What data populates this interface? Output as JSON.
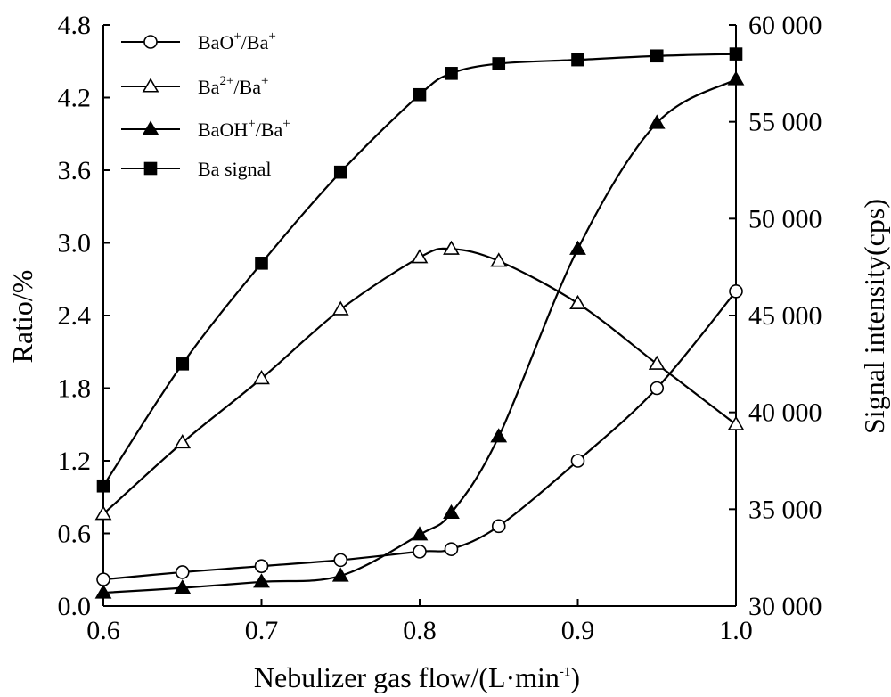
{
  "chart_data": {
    "type": "line",
    "xlabel": "Nebulizer gas flow/(L·min",
    "xlabel_sup": "-1",
    "xlabel_end": ")",
    "ylabel_left": "Ratio/%",
    "ylabel_right": "Signal intensity(cps)",
    "xlim": [
      0.6,
      1.0
    ],
    "ylim_left": [
      0.0,
      4.8
    ],
    "ylim_right": [
      30000,
      60000
    ],
    "x_ticks": [
      "0.6",
      "0.7",
      "0.8",
      "0.9",
      "1.0"
    ],
    "y_left_ticks": [
      "0.0",
      "0.6",
      "1.2",
      "1.8",
      "2.4",
      "3.0",
      "3.6",
      "4.2",
      "4.8"
    ],
    "y_right_ticks": [
      "30 000",
      "35 000",
      "40 000",
      "45 000",
      "50 000",
      "55 000",
      "60 000"
    ],
    "grid": false,
    "legend_position": "top-left",
    "series": [
      {
        "name": "BaO+/Ba+",
        "label_parts": [
          [
            "BaO",
            ""
          ],
          [
            "+",
            "sup"
          ],
          [
            "/Ba",
            ""
          ],
          [
            "+",
            "sup"
          ]
        ],
        "marker": "circle-open",
        "axis": "left",
        "x": [
          0.6,
          0.65,
          0.7,
          0.75,
          0.8,
          0.82,
          0.85,
          0.9,
          0.95,
          1.0
        ],
        "values": [
          0.22,
          0.28,
          0.33,
          0.38,
          0.45,
          0.47,
          0.66,
          1.2,
          1.8,
          2.6
        ]
      },
      {
        "name": "Ba2+/Ba+",
        "label_parts": [
          [
            "Ba",
            ""
          ],
          [
            "2+",
            "sup"
          ],
          [
            "/Ba",
            ""
          ],
          [
            "+",
            "sup"
          ]
        ],
        "marker": "triangle-open",
        "axis": "left",
        "x": [
          0.6,
          0.65,
          0.7,
          0.75,
          0.8,
          0.82,
          0.85,
          0.9,
          0.95,
          1.0
        ],
        "values": [
          0.76,
          1.35,
          1.88,
          2.45,
          2.88,
          2.95,
          2.85,
          2.5,
          2.0,
          1.5
        ]
      },
      {
        "name": "BaOH+/Ba+",
        "label_parts": [
          [
            "BaOH",
            ""
          ],
          [
            "+",
            "sup"
          ],
          [
            "/Ba",
            ""
          ],
          [
            "+",
            "sup"
          ]
        ],
        "marker": "triangle-filled",
        "axis": "left",
        "x": [
          0.6,
          0.65,
          0.7,
          0.75,
          0.8,
          0.82,
          0.85,
          0.9,
          0.95,
          1.0
        ],
        "values": [
          0.11,
          0.15,
          0.2,
          0.25,
          0.59,
          0.77,
          1.4,
          2.95,
          3.99,
          4.35
        ]
      },
      {
        "name": "Ba signal",
        "label_parts": [
          [
            "Ba signal",
            ""
          ]
        ],
        "marker": "square-filled",
        "axis": "right",
        "x": [
          0.6,
          0.65,
          0.7,
          0.75,
          0.8,
          0.82,
          0.85,
          0.9,
          0.95,
          1.0
        ],
        "values": [
          36200,
          42500,
          47700,
          52400,
          56400,
          57500,
          58000,
          58200,
          58400,
          58500
        ]
      }
    ]
  }
}
